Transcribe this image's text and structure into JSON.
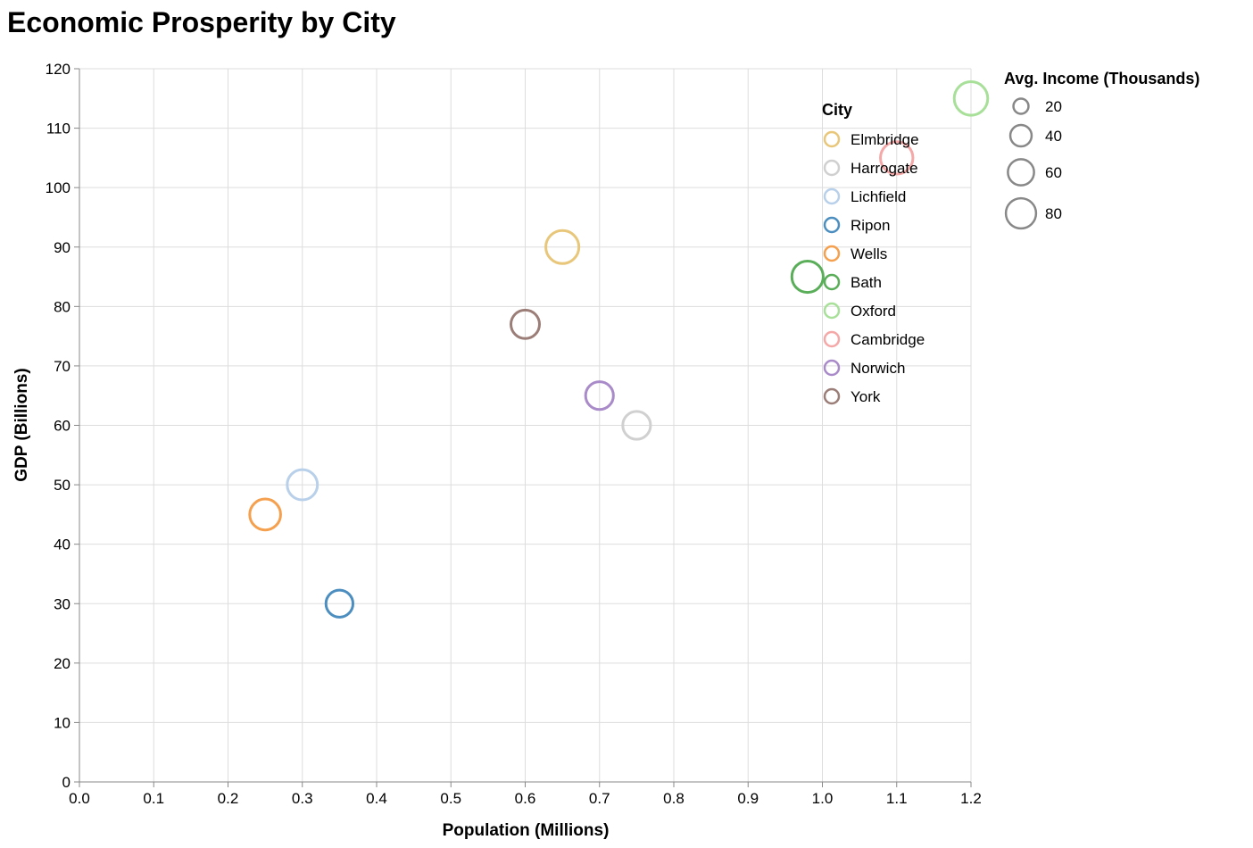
{
  "chart_data": {
    "type": "scatter",
    "title": "Economic Prosperity by City",
    "xlabel": "Population (Millions)",
    "ylabel": "GDP (Billions)",
    "xlim": [
      0,
      1.2
    ],
    "ylim": [
      0,
      120
    ],
    "xticks": [
      0,
      0.1,
      0.2,
      0.3,
      0.4,
      0.5,
      0.6,
      0.7,
      0.8,
      0.9,
      1.0,
      1.1,
      1.2
    ],
    "yticks": [
      0,
      10,
      20,
      30,
      40,
      50,
      60,
      70,
      80,
      90,
      100,
      110,
      120
    ],
    "grid": true,
    "color_legend": {
      "title": "City",
      "entries": [
        {
          "name": "Elmbridge",
          "color": "#e8c77a"
        },
        {
          "name": "Harrogate",
          "color": "#d0d0d0"
        },
        {
          "name": "Lichfield",
          "color": "#b9d0ea"
        },
        {
          "name": "Ripon",
          "color": "#4c8ebf"
        },
        {
          "name": "Wells",
          "color": "#f5a04e"
        },
        {
          "name": "Bath",
          "color": "#5aae5a"
        },
        {
          "name": "Oxford",
          "color": "#a8e09a"
        },
        {
          "name": "Cambridge",
          "color": "#f5a8a8"
        },
        {
          "name": "Norwich",
          "color": "#a98bc9"
        },
        {
          "name": "York",
          "color": "#9c7e78"
        }
      ]
    },
    "size_legend": {
      "title": "Avg. Income (Thousands)",
      "values": [
        20,
        40,
        60,
        80
      ]
    },
    "points": [
      {
        "city": "Oxford",
        "population": 1.2,
        "gdp": 115,
        "income": 80
      },
      {
        "city": "Cambridge",
        "population": 1.1,
        "gdp": 105,
        "income": 75
      },
      {
        "city": "Elmbridge",
        "population": 0.65,
        "gdp": 90,
        "income": 78
      },
      {
        "city": "Bath",
        "population": 0.98,
        "gdp": 85,
        "income": 70
      },
      {
        "city": "York",
        "population": 0.6,
        "gdp": 77,
        "income": 58
      },
      {
        "city": "Norwich",
        "population": 0.7,
        "gdp": 65,
        "income": 55
      },
      {
        "city": "Harrogate",
        "population": 0.75,
        "gdp": 60,
        "income": 55
      },
      {
        "city": "Lichfield",
        "population": 0.3,
        "gdp": 50,
        "income": 65
      },
      {
        "city": "Wells",
        "population": 0.25,
        "gdp": 45,
        "income": 68
      },
      {
        "city": "Ripon",
        "population": 0.35,
        "gdp": 30,
        "income": 52
      }
    ]
  }
}
